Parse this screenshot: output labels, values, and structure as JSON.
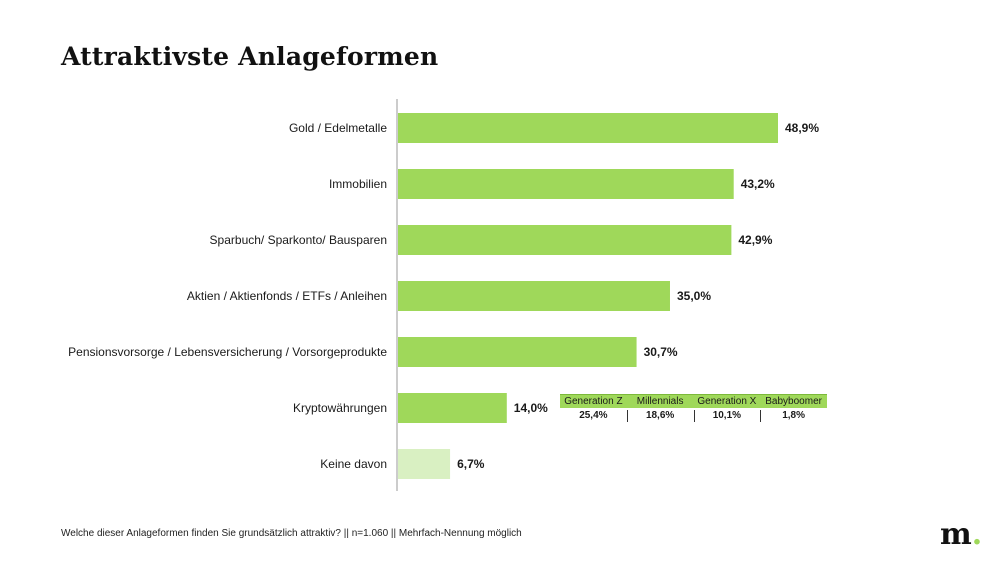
{
  "title": "Attraktivste Anlageformen",
  "chart_data": {
    "type": "bar",
    "orientation": "horizontal",
    "categories": [
      "Gold / Edelmetalle",
      "Immobilien",
      "Sparbuch/ Sparkonto/ Bausparen",
      "Aktien / Aktienfonds / ETFs / Anleihen",
      "Pensionsvorsorge / Lebensversicherung / Vorsorgeprodukte",
      "Kryptowährungen",
      "Keine davon"
    ],
    "values": [
      48.9,
      43.2,
      42.9,
      35.0,
      30.7,
      14.0,
      6.7
    ],
    "value_labels": [
      "48,9%",
      "43,2%",
      "42,9%",
      "35,0%",
      "30,7%",
      "14,0%",
      "6,7%"
    ],
    "colors": [
      "#9fd85a",
      "#9fd85a",
      "#9fd85a",
      "#9fd85a",
      "#9fd85a",
      "#9fd85a",
      "#d9f0c2"
    ],
    "xlim": [
      0,
      50
    ],
    "grid": false,
    "legend": "none"
  },
  "generations": {
    "headers": [
      "Generation Z",
      "Millennials",
      "Generation X",
      "Babyboomer"
    ],
    "values": [
      "25,4%",
      "18,6%",
      "10,1%",
      "1,8%"
    ]
  },
  "footnote": "Welche dieser Anlageformen finden Sie grundsätzlich attraktiv? || n=1.060 || Mehrfach-Nennung möglich",
  "logo": {
    "letter": "m",
    "dot": ".",
    "dot_color": "#9fd85a"
  }
}
